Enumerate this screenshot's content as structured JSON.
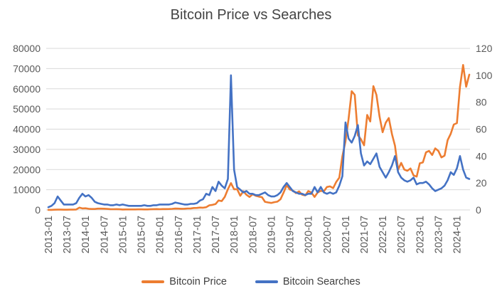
{
  "title": "Bitcoin Price vs Searches",
  "colors": {
    "price": "#ED7D31",
    "searches": "#4472C4",
    "grid": "#D9D9D9",
    "axis_text": "#595959",
    "title_text": "#444444"
  },
  "chart_data": {
    "type": "line",
    "title": "Bitcoin Price vs Searches",
    "x_start": "2013-01",
    "x_interval": "monthly",
    "x_tick_every": 6,
    "x_tick_labels": [
      "2013-01",
      "2013-07",
      "2014-01",
      "2014-07",
      "2015-01",
      "2015-07",
      "2016-01",
      "2016-07",
      "2017-01",
      "2017-07",
      "2018-01",
      "2018-07",
      "2019-01",
      "2019-07",
      "2020-01",
      "2020-07",
      "2021-01",
      "2021-07",
      "2022-01",
      "2022-07",
      "2023-01",
      "2023-07",
      "2024-01"
    ],
    "left_axis": {
      "min": 0,
      "max": 80000,
      "step": 10000,
      "tick_labels": [
        "0",
        "10000",
        "20000",
        "30000",
        "40000",
        "50000",
        "60000",
        "70000",
        "80000"
      ]
    },
    "right_axis": {
      "min": 0,
      "max": 120,
      "step": 20,
      "tick_labels": [
        "0",
        "20",
        "40",
        "60",
        "80",
        "100",
        "120"
      ]
    },
    "grid": "horizontal",
    "legend_position": "bottom",
    "series": [
      {
        "name": "Bitcoin Price",
        "axis": "left",
        "color": "#ED7D31",
        "values": [
          20,
          35,
          90,
          139,
          128,
          97,
          97,
          135,
          141,
          204,
          1130,
          755,
          805,
          565,
          455,
          445,
          630,
          635,
          585,
          480,
          385,
          340,
          375,
          320,
          215,
          255,
          245,
          235,
          230,
          265,
          285,
          230,
          235,
          315,
          375,
          430,
          370,
          435,
          415,
          450,
          530,
          670,
          625,
          575,
          610,
          700,
          745,
          965,
          970,
          1180,
          1080,
          1350,
          2300,
          2500,
          2875,
          4700,
          4360,
          6450,
          10250,
          13300,
          10200,
          10300,
          7000,
          9250,
          7500,
          6400,
          7750,
          7000,
          6600,
          6300,
          4000,
          3700,
          3450,
          3850,
          4100,
          5300,
          8550,
          12300,
          10100,
          9600,
          8300,
          9150,
          7550,
          7200,
          9350,
          8600,
          6450,
          8650,
          9450,
          9150,
          11350,
          11650,
          10800,
          13800,
          16000,
          26500,
          34000,
          45000,
          58800,
          57000,
          37000,
          35000,
          32000,
          47000,
          43800,
          61300,
          57000,
          46200,
          38500,
          43200,
          45500,
          37600,
          31800,
          19900,
          23300,
          20000,
          19400,
          20500,
          17100,
          16500,
          23100,
          23500,
          28500,
          29200,
          27200,
          30500,
          29200,
          26000,
          26900,
          34500,
          37700,
          42300,
          43000,
          61000,
          71800,
          61000,
          67000
        ]
      },
      {
        "name": "Bitcoin Searches",
        "axis": "right",
        "color": "#4472C4",
        "values": [
          2,
          3,
          5,
          10,
          7,
          4,
          4,
          4,
          4,
          5,
          9,
          12,
          10,
          11,
          9,
          6,
          5,
          4.5,
          4,
          4,
          3.5,
          3.5,
          4,
          3.5,
          4,
          3.5,
          3,
          3,
          3,
          3,
          3,
          3.5,
          3,
          3,
          3.5,
          3.5,
          4,
          4,
          4,
          4,
          4.5,
          5.5,
          5,
          4.5,
          4,
          4,
          4.5,
          4.5,
          5,
          7,
          8,
          12,
          11,
          17,
          14,
          21,
          18,
          16,
          23,
          100,
          30,
          17,
          15,
          13,
          14,
          12,
          12,
          11,
          11,
          12,
          13,
          11,
          10,
          10,
          11,
          13,
          17,
          20,
          17,
          14,
          13,
          12,
          12,
          11,
          12,
          12,
          17,
          13,
          17,
          13,
          12,
          13,
          12,
          13,
          18,
          25,
          65,
          53,
          50,
          55,
          63,
          42,
          33,
          36,
          34,
          38,
          42,
          32,
          28,
          24,
          28,
          33,
          40,
          28,
          24,
          22,
          21,
          22,
          24,
          19,
          20,
          20,
          21,
          19,
          16,
          14,
          15,
          16,
          18,
          22,
          28,
          26,
          31,
          40,
          30,
          24,
          23
        ]
      }
    ]
  }
}
